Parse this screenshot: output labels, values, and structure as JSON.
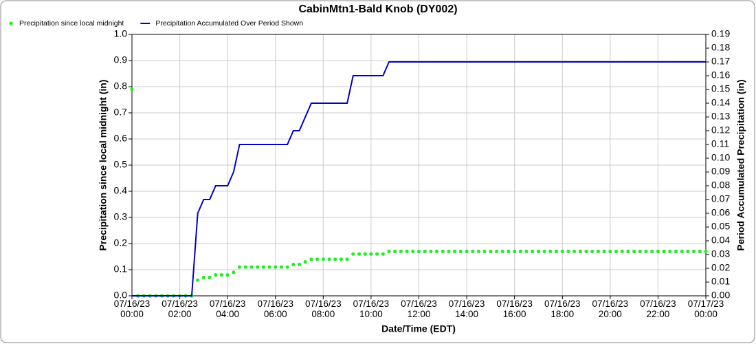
{
  "chart_data": {
    "type": "line",
    "title": "CabinMtn1-Bald Knob (DY002)",
    "xlabel": "Date/Time (EDT)",
    "ylabel": "Precipitation since local midnight (in)",
    "y2label": "Period Accumulated Precipitation (in)",
    "grid": true,
    "legend": "top-left",
    "xlim": [
      0,
      24
    ],
    "xticks": [
      {
        "value": 0,
        "label": "07/16/23 00:00"
      },
      {
        "value": 2,
        "label": "07/16/23 02:00"
      },
      {
        "value": 4,
        "label": "07/16/23 04:00"
      },
      {
        "value": 6,
        "label": "07/16/23 06:00"
      },
      {
        "value": 8,
        "label": "07/16/23 08:00"
      },
      {
        "value": 10,
        "label": "07/16/23 10:00"
      },
      {
        "value": 12,
        "label": "07/16/23 12:00"
      },
      {
        "value": 14,
        "label": "07/16/23 14:00"
      },
      {
        "value": 16,
        "label": "07/16/23 16:00"
      },
      {
        "value": 18,
        "label": "07/16/23 18:00"
      },
      {
        "value": 20,
        "label": "07/16/23 20:00"
      },
      {
        "value": 22,
        "label": "07/16/23 22:00"
      },
      {
        "value": 24,
        "label": "07/17/23 00:00"
      }
    ],
    "ylim": [
      0,
      1
    ],
    "yticks": [
      {
        "value": 0,
        "label": "0.0"
      },
      0.1,
      0.2,
      0.3,
      0.4,
      0.5,
      0.6,
      0.7,
      0.8,
      0.9,
      {
        "value": 1,
        "label": "1.0"
      }
    ],
    "y2lim": [
      0,
      0.19
    ],
    "y2ticks": [
      {
        "value": 0,
        "label": "0.00"
      },
      {
        "value": 0.01,
        "label": "0.01"
      },
      {
        "value": 0.02,
        "label": "0.02"
      },
      {
        "value": 0.03,
        "label": "0.03"
      },
      {
        "value": 0.04,
        "label": "0.04"
      },
      {
        "value": 0.05,
        "label": "0.05"
      },
      {
        "value": 0.06,
        "label": "0.06"
      },
      {
        "value": 0.07,
        "label": "0.07"
      },
      {
        "value": 0.08,
        "label": "0.08"
      },
      {
        "value": 0.09,
        "label": "0.09"
      },
      {
        "value": 0.1,
        "label": "0.10"
      },
      {
        "value": 0.11,
        "label": "0.11"
      },
      {
        "value": 0.12,
        "label": "0.12"
      },
      {
        "value": 0.13,
        "label": "0.13"
      },
      {
        "value": 0.14,
        "label": "0.14"
      },
      {
        "value": 0.15,
        "label": "0.15"
      },
      {
        "value": 0.16,
        "label": "0.16"
      },
      {
        "value": 0.17,
        "label": "0.17"
      },
      {
        "value": 0.18,
        "label": "0.18"
      },
      {
        "value": 0.19,
        "label": "0.19"
      }
    ],
    "x": [
      0,
      0.25,
      0.5,
      0.75,
      1,
      1.25,
      1.5,
      1.75,
      2,
      2.25,
      2.5,
      2.75,
      3,
      3.25,
      3.5,
      3.75,
      4,
      4.25,
      4.5,
      4.75,
      5,
      5.25,
      5.5,
      5.75,
      6,
      6.25,
      6.5,
      6.75,
      7,
      7.25,
      7.5,
      7.75,
      8,
      8.25,
      8.5,
      8.75,
      9,
      9.25,
      9.5,
      9.75,
      10,
      10.25,
      10.5,
      10.75,
      11,
      11.25,
      11.5,
      11.75,
      12,
      12.25,
      12.5,
      12.75,
      13,
      13.25,
      13.5,
      13.75,
      14,
      14.25,
      14.5,
      14.75,
      15,
      15.25,
      15.5,
      15.75,
      16,
      16.25,
      16.5,
      16.75,
      17,
      17.25,
      17.5,
      17.75,
      18,
      18.25,
      18.5,
      18.75,
      19,
      19.25,
      19.5,
      19.75,
      20,
      20.25,
      20.5,
      20.75,
      21,
      21.25,
      21.5,
      21.75,
      22,
      22.25,
      22.5,
      22.75,
      23,
      23.25,
      23.5,
      23.75,
      24
    ],
    "series": [
      {
        "name": "Precipitation since local midnight",
        "type": "scatter",
        "color": "#22ee22",
        "values": [
          0.79,
          0,
          0,
          0,
          0,
          0,
          0,
          0,
          0,
          0,
          0,
          0.06,
          0.07,
          0.07,
          0.08,
          0.08,
          0.08,
          0.09,
          0.11,
          0.11,
          0.11,
          0.11,
          0.11,
          0.11,
          0.11,
          0.11,
          0.11,
          0.12,
          0.12,
          0.13,
          0.14,
          0.14,
          0.14,
          0.14,
          0.14,
          0.14,
          0.14,
          0.16,
          0.16,
          0.16,
          0.16,
          0.16,
          0.16,
          0.17,
          0.17,
          0.17,
          0.17,
          0.17,
          0.17,
          0.17,
          0.17,
          0.17,
          0.17,
          0.17,
          0.17,
          0.17,
          0.17,
          0.17,
          0.17,
          0.17,
          0.17,
          0.17,
          0.17,
          0.17,
          0.17,
          0.17,
          0.17,
          0.17,
          0.17,
          0.17,
          0.17,
          0.17,
          0.17,
          0.17,
          0.17,
          0.17,
          0.17,
          0.17,
          0.17,
          0.17,
          0.17,
          0.17,
          0.17,
          0.17,
          0.17,
          0.17,
          0.17,
          0.17,
          0.17,
          0.17,
          0.17,
          0.17,
          0.17,
          0.17,
          0.17,
          0.17,
          0.17
        ]
      },
      {
        "name": "Precipitation Accumulated Over Period Shown",
        "type": "line",
        "color": "#0000cc",
        "axis": "y2",
        "values": [
          0,
          0,
          0,
          0,
          0,
          0,
          0,
          0,
          0,
          0,
          0,
          0.06,
          0.07,
          0.07,
          0.08,
          0.08,
          0.08,
          0.09,
          0.11,
          0.11,
          0.11,
          0.11,
          0.11,
          0.11,
          0.11,
          0.11,
          0.11,
          0.12,
          0.12,
          0.13,
          0.14,
          0.14,
          0.14,
          0.14,
          0.14,
          0.14,
          0.14,
          0.16,
          0.16,
          0.16,
          0.16,
          0.16,
          0.16,
          0.17,
          0.17,
          0.17,
          0.17,
          0.17,
          0.17,
          0.17,
          0.17,
          0.17,
          0.17,
          0.17,
          0.17,
          0.17,
          0.17,
          0.17,
          0.17,
          0.17,
          0.17,
          0.17,
          0.17,
          0.17,
          0.17,
          0.17,
          0.17,
          0.17,
          0.17,
          0.17,
          0.17,
          0.17,
          0.17,
          0.17,
          0.17,
          0.17,
          0.17,
          0.17,
          0.17,
          0.17,
          0.17,
          0.17,
          0.17,
          0.17,
          0.17,
          0.17,
          0.17,
          0.17,
          0.17,
          0.17,
          0.17,
          0.17,
          0.17,
          0.17,
          0.17,
          0.17,
          0.17
        ]
      }
    ]
  }
}
